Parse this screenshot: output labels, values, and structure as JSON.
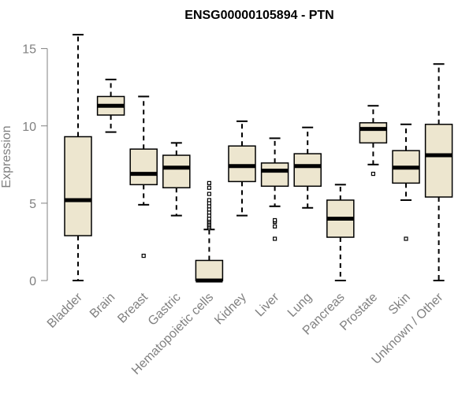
{
  "chart_data": {
    "type": "boxplot",
    "title": "ENSG00000105894 - PTN",
    "xlabel": "",
    "ylabel": "Expression",
    "ylim": [
      0,
      16
    ],
    "yticks": [
      0,
      5,
      10,
      15
    ],
    "box_fill": "#ede6cf",
    "categories": [
      "Bladder",
      "Brain",
      "Breast",
      "Gastric",
      "Hematopoietic cells",
      "Kidney",
      "Liver",
      "Lung",
      "Pancreas",
      "Prostate",
      "Skin",
      "Unknown / Other"
    ],
    "boxes": [
      {
        "category": "Bladder",
        "whisker_low": 0.0,
        "q1": 2.9,
        "median": 5.2,
        "q3": 9.3,
        "whisker_high": 15.9,
        "outliers": []
      },
      {
        "category": "Brain",
        "whisker_low": 9.6,
        "q1": 10.7,
        "median": 11.3,
        "q3": 11.9,
        "whisker_high": 13.0,
        "outliers": []
      },
      {
        "category": "Breast",
        "whisker_low": 4.9,
        "q1": 6.2,
        "median": 6.9,
        "q3": 8.5,
        "whisker_high": 11.9,
        "outliers": [
          1.6
        ]
      },
      {
        "category": "Gastric",
        "whisker_low": 4.2,
        "q1": 6.0,
        "median": 7.3,
        "q3": 8.1,
        "whisker_high": 8.9,
        "outliers": []
      },
      {
        "category": "Hematopoietic cells",
        "whisker_low": 0.0,
        "q1": 0.0,
        "median": 0.0,
        "q3": 1.3,
        "whisker_high": 3.3,
        "outliers": [
          3.4,
          3.5,
          3.6,
          3.7,
          3.8,
          3.9,
          4.0,
          4.2,
          4.4,
          4.6,
          4.8,
          5.0,
          5.2,
          5.6,
          6.0,
          6.3
        ]
      },
      {
        "category": "Kidney",
        "whisker_low": 4.2,
        "q1": 6.4,
        "median": 7.4,
        "q3": 8.7,
        "whisker_high": 10.3,
        "outliers": []
      },
      {
        "category": "Liver",
        "whisker_low": 4.8,
        "q1": 6.1,
        "median": 7.1,
        "q3": 7.6,
        "whisker_high": 9.2,
        "outliers": [
          2.7,
          3.5,
          3.8,
          3.9
        ]
      },
      {
        "category": "Lung",
        "whisker_low": 4.7,
        "q1": 6.1,
        "median": 7.4,
        "q3": 8.2,
        "whisker_high": 9.9,
        "outliers": []
      },
      {
        "category": "Pancreas",
        "whisker_low": 0.0,
        "q1": 2.8,
        "median": 4.0,
        "q3": 5.2,
        "whisker_high": 6.2,
        "outliers": []
      },
      {
        "category": "Prostate",
        "whisker_low": 7.5,
        "q1": 8.9,
        "median": 9.8,
        "q3": 10.2,
        "whisker_high": 11.3,
        "outliers": [
          6.9
        ]
      },
      {
        "category": "Skin",
        "whisker_low": 5.2,
        "q1": 6.3,
        "median": 7.3,
        "q3": 8.4,
        "whisker_high": 10.1,
        "outliers": [
          2.7
        ]
      },
      {
        "category": "Unknown / Other",
        "whisker_low": 0.0,
        "q1": 5.4,
        "median": 8.1,
        "q3": 10.1,
        "whisker_high": 14.0,
        "outliers": []
      }
    ]
  }
}
